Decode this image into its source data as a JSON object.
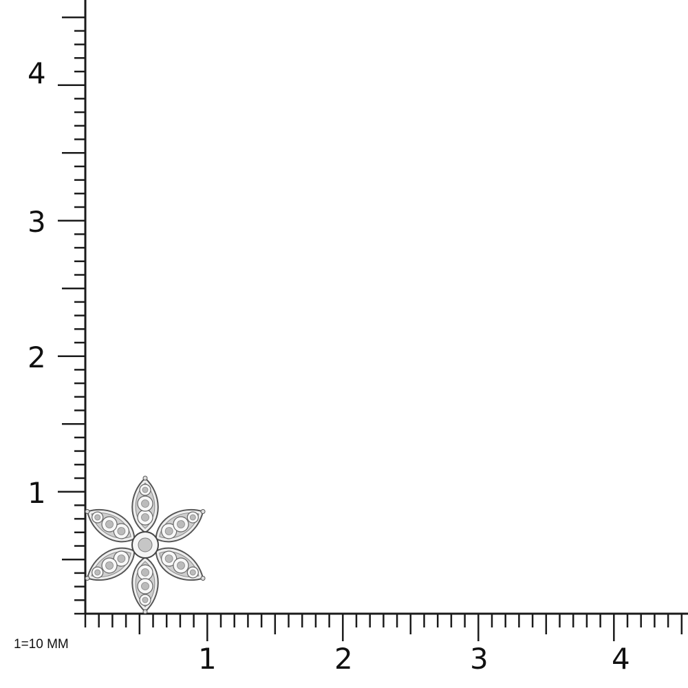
{
  "scale_note": "1=10 MM",
  "ruler": {
    "x_labels": [
      "1",
      "2",
      "3",
      "4"
    ],
    "y_labels": [
      "1",
      "2",
      "3",
      "4"
    ],
    "range": [
      0.1,
      4.5
    ],
    "minor_step": 0.1,
    "color": "#1a1a1a"
  },
  "product": {
    "type": "flower-earring",
    "petals": 6,
    "metal_color": "#d9d9d9"
  }
}
